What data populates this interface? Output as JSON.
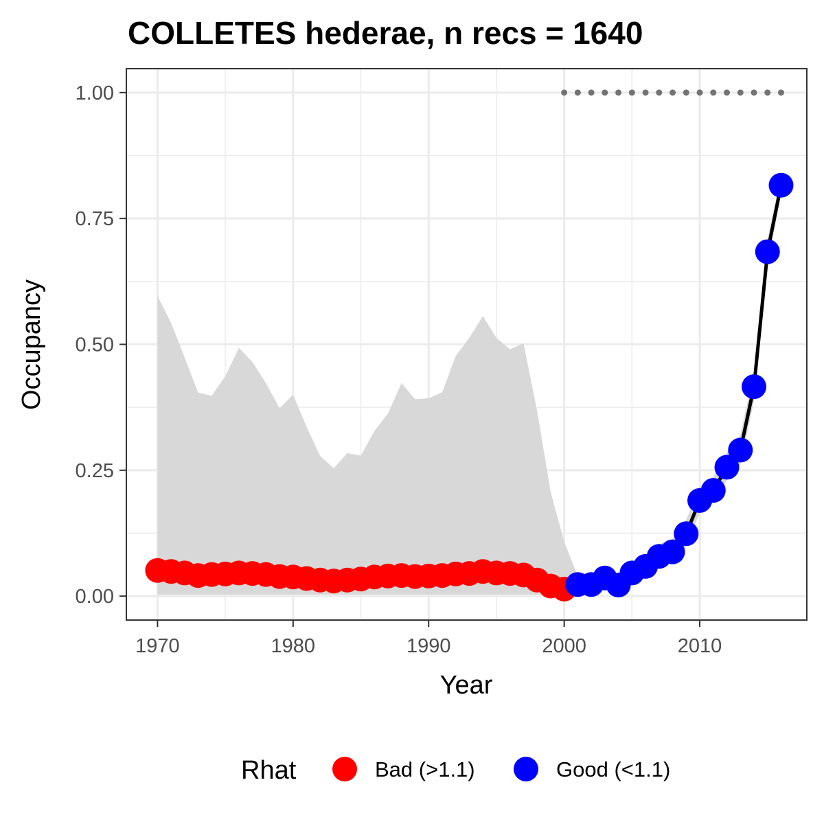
{
  "chart_data": {
    "type": "line",
    "title": "COLLETES hederae, n recs = 1640",
    "xlabel": "Year",
    "ylabel": "Occupancy",
    "xlim": [
      1967.7,
      2017.9
    ],
    "ylim": [
      -0.0475,
      1.0475
    ],
    "x_ticks": [
      1970,
      1980,
      1990,
      2000,
      2010
    ],
    "x_tick_labels": [
      "1970",
      "1980",
      "1990",
      "2000",
      "2010"
    ],
    "y_ticks": [
      0,
      0.25,
      0.5,
      0.75,
      1
    ],
    "y_tick_labels": [
      "0.00",
      "0.25",
      "0.50",
      "0.75",
      "1.00"
    ],
    "grid": true,
    "legend": {
      "title": "Rhat",
      "position": "bottom",
      "entries": [
        {
          "label": "Bad (>1.1)",
          "color": "#ff0000"
        },
        {
          "label": "Good (<1.1)",
          "color": "#0000ff"
        }
      ]
    },
    "colors": {
      "bad": "#ff0000",
      "good": "#0000ff",
      "ribbon": "#d6d6d6",
      "line": "#000000",
      "dots": "#737373"
    },
    "series": [
      {
        "name": "Bad (>1.1)",
        "x": [
          1970,
          1971,
          1972,
          1973,
          1974,
          1975,
          1976,
          1977,
          1978,
          1979,
          1980,
          1981,
          1982,
          1983,
          1984,
          1985,
          1986,
          1987,
          1988,
          1989,
          1990,
          1991,
          1992,
          1993,
          1994,
          1995,
          1996,
          1997,
          1998,
          1999,
          2000
        ],
        "values": [
          0.051,
          0.049,
          0.046,
          0.041,
          0.043,
          0.044,
          0.046,
          0.045,
          0.043,
          0.039,
          0.038,
          0.035,
          0.032,
          0.03,
          0.032,
          0.034,
          0.038,
          0.04,
          0.041,
          0.039,
          0.04,
          0.041,
          0.044,
          0.045,
          0.049,
          0.046,
          0.045,
          0.042,
          0.032,
          0.02,
          0.014
        ],
        "lower": [
          0.003,
          0.003,
          0.003,
          0.003,
          0.003,
          0.003,
          0.003,
          0.003,
          0.003,
          0.003,
          0.003,
          0.003,
          0.003,
          0.003,
          0.003,
          0.003,
          0.003,
          0.003,
          0.003,
          0.003,
          0.003,
          0.003,
          0.003,
          0.003,
          0.003,
          0.003,
          0.003,
          0.003,
          0.003,
          0.003,
          0.003
        ],
        "upper": [
          0.596,
          0.543,
          0.474,
          0.404,
          0.398,
          0.437,
          0.493,
          0.465,
          0.423,
          0.373,
          0.4,
          0.336,
          0.278,
          0.254,
          0.284,
          0.279,
          0.328,
          0.363,
          0.423,
          0.391,
          0.393,
          0.405,
          0.477,
          0.513,
          0.556,
          0.513,
          0.49,
          0.502,
          0.368,
          0.207,
          0.108
        ]
      },
      {
        "name": "Good (<1.1)",
        "x": [
          2001,
          2002,
          2003,
          2004,
          2005,
          2006,
          2007,
          2008,
          2009,
          2010,
          2011,
          2012,
          2013,
          2014,
          2015,
          2016
        ],
        "values": [
          0.023,
          0.023,
          0.036,
          0.022,
          0.046,
          0.059,
          0.079,
          0.088,
          0.124,
          0.19,
          0.21,
          0.256,
          0.29,
          0.416,
          0.684,
          0.816
        ],
        "lower": [
          0.012,
          0.012,
          0.022,
          0.013,
          0.03,
          0.041,
          0.058,
          0.066,
          0.1,
          0.165,
          0.185,
          0.23,
          0.262,
          0.387,
          0.659,
          0.797
        ],
        "upper": [
          0.04,
          0.042,
          0.056,
          0.037,
          0.066,
          0.081,
          0.103,
          0.113,
          0.151,
          0.217,
          0.237,
          0.285,
          0.32,
          0.445,
          0.709,
          0.836
        ]
      }
    ],
    "reference_dots": {
      "x_start": 2000,
      "x_end": 2016,
      "y": 1.0
    }
  }
}
